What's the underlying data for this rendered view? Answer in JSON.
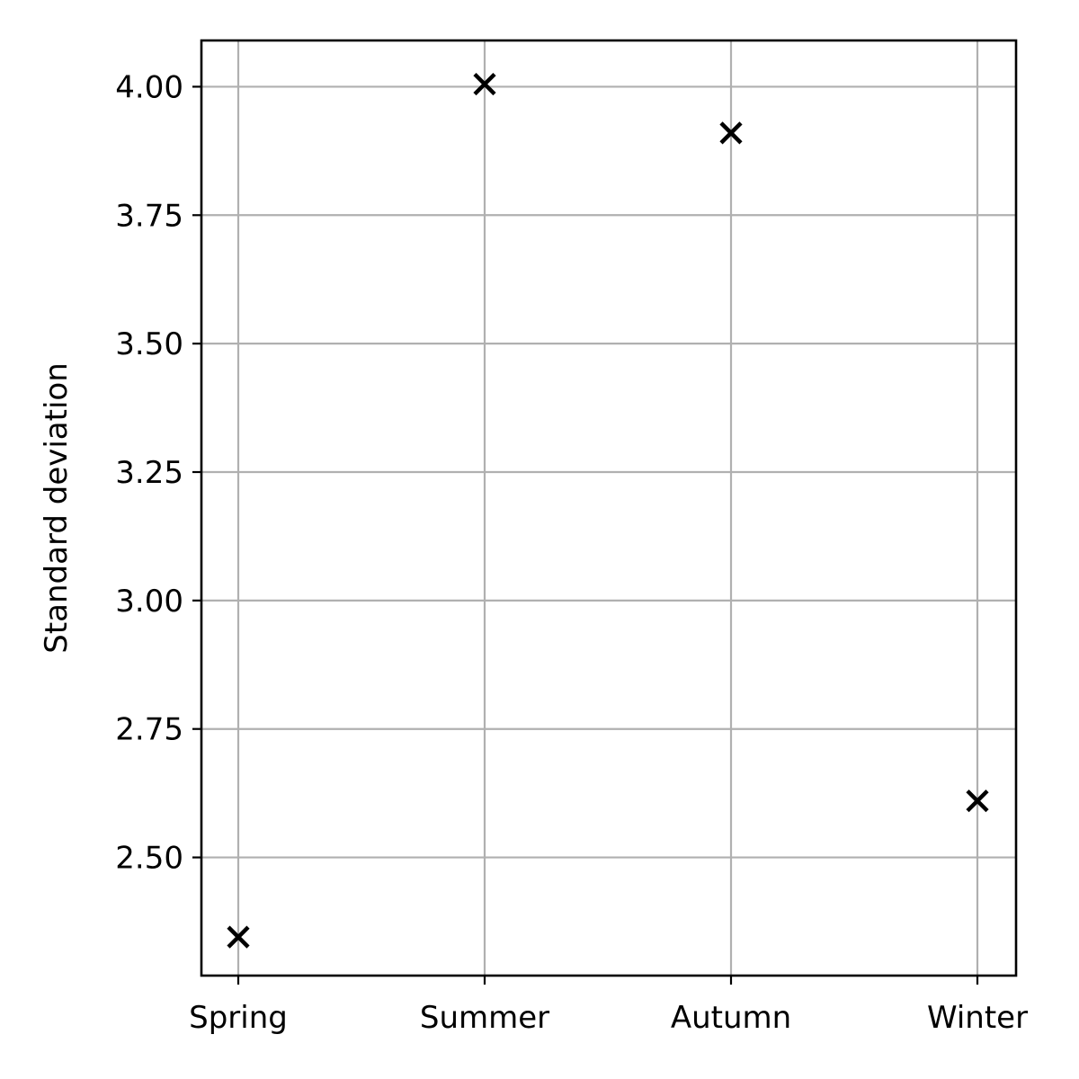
{
  "chart_data": {
    "type": "scatter",
    "title": "",
    "xlabel": "",
    "ylabel": "Standard deviation",
    "categories": [
      "Spring",
      "Summer",
      "Autumn",
      "Winter"
    ],
    "values": [
      2.345,
      4.005,
      3.91,
      2.61
    ],
    "yticks": [
      "2.50",
      "2.75",
      "3.00",
      "3.25",
      "3.50",
      "3.75",
      "4.00"
    ],
    "ylim": [
      2.27,
      4.09
    ],
    "marker": "x",
    "marker_color": "#000000",
    "grid": true,
    "grid_color": "#b0b0b0"
  }
}
